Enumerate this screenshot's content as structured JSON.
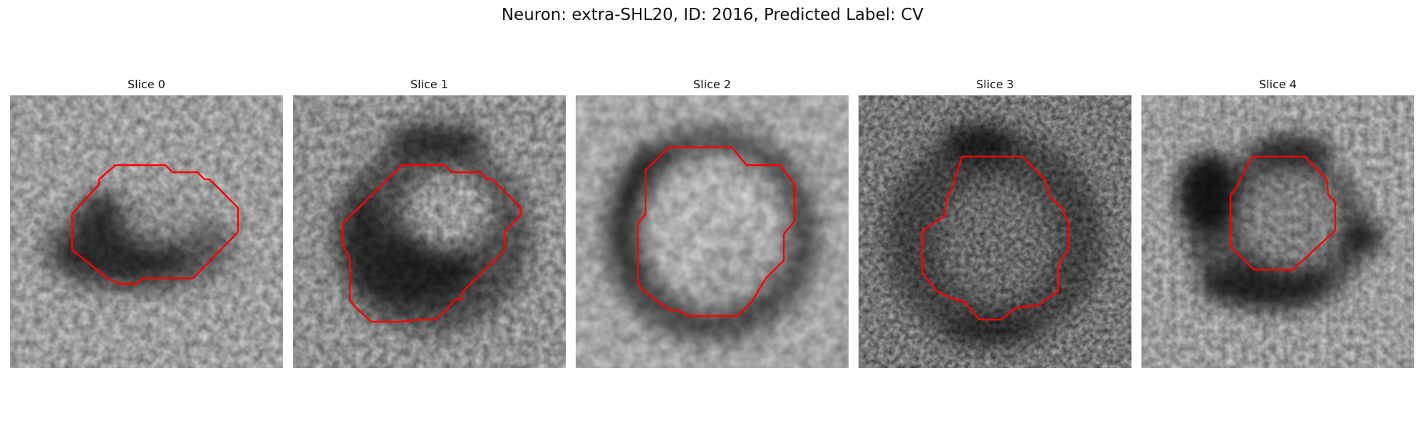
{
  "figure": {
    "title": "Neuron: extra-SHL20, ID: 2016, Predicted Label: CV",
    "outline_color": "#ff0000"
  },
  "panels": [
    {
      "title": "Slice 0"
    },
    {
      "title": "Slice 1"
    },
    {
      "title": "Slice 2"
    },
    {
      "title": "Slice 3"
    },
    {
      "title": "Slice 4"
    }
  ]
}
